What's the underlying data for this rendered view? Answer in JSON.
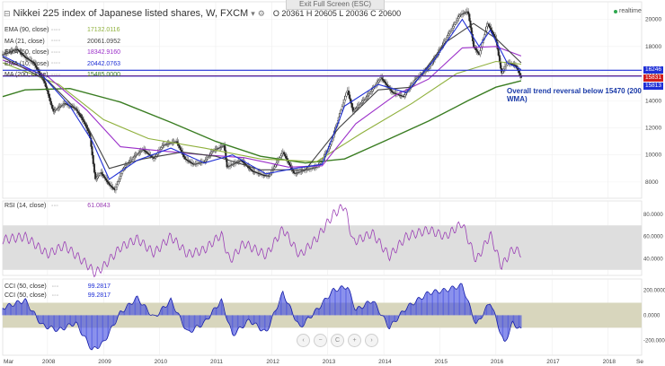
{
  "header": {
    "exit_fullscreen": "Exit Full Screen (ESC)",
    "title": "Nikkei 225 index of Japanese listed shares, W, FXCM",
    "ohlc": "O 20361 H 20605 L 20036 C 20600",
    "realtime": "realtime"
  },
  "indicators": [
    {
      "name": "EMA (90, close)",
      "value": "17132.0116",
      "color": "#8fb03c"
    },
    {
      "name": "MA (21, close)",
      "value": "20061.0952",
      "color": "#444444"
    },
    {
      "name": "EMA (50, close)",
      "value": "18342.9160",
      "color": "#9b2fc9"
    },
    {
      "name": "EMA (10, close)",
      "value": "20442.0763",
      "color": "#1f2fd6"
    },
    {
      "name": "MA (200, close)",
      "value": "15485.0000",
      "color": "#3a7d22"
    }
  ],
  "price_tags": [
    {
      "label": "16246",
      "color": "#1f2fd6"
    },
    {
      "label": "15831",
      "color": "#d01d1d"
    },
    {
      "label": "15813",
      "color": "#1f2fd6"
    }
  ],
  "annotation": "Overall trend reversal below 15470 (200 WMA)",
  "rsi_label": {
    "name": "RSI (14, close)",
    "value": "61.0843"
  },
  "cci_labels": [
    {
      "name": "CCI (50, close)",
      "value": "99.2817"
    },
    {
      "name": "CCI (50, close)",
      "value": "99.2817"
    }
  ],
  "nav_controls": [
    {
      "icon": "chevron-left-icon",
      "glyph": "‹"
    },
    {
      "icon": "minus-icon",
      "glyph": "−"
    },
    {
      "icon": "reset-icon",
      "glyph": "C"
    },
    {
      "icon": "plus-icon",
      "glyph": "+"
    },
    {
      "icon": "chevron-right-icon",
      "glyph": "›"
    }
  ],
  "chart_data": [
    {
      "type": "candlestick",
      "title": "Nikkei 225 index of Japanese listed shares, W, FXCM",
      "x_ticks": [
        "Mar",
        "2008",
        "2009",
        "2010",
        "2011",
        "2012",
        "2013",
        "2014",
        "2015",
        "2016",
        "2017",
        "2018",
        "Se"
      ],
      "x_range": [
        2007.2,
        2018.6
      ],
      "y_ticks": [
        "8000",
        "10000",
        "12000",
        "14000",
        "16000",
        "18000",
        "20000"
      ],
      "ylim": [
        6800,
        21300
      ],
      "horizontal_levels": [
        16246,
        15831,
        15813
      ],
      "price_path": [
        [
          2007.2,
          17400
        ],
        [
          2007.45,
          17800
        ],
        [
          2007.6,
          17200
        ],
        [
          2007.75,
          16800
        ],
        [
          2007.95,
          15300
        ],
        [
          2008.1,
          13200
        ],
        [
          2008.3,
          13800
        ],
        [
          2008.5,
          13400
        ],
        [
          2008.65,
          12400
        ],
        [
          2008.75,
          11500
        ],
        [
          2008.85,
          8200
        ],
        [
          2008.95,
          8700
        ],
        [
          2009.1,
          7800
        ],
        [
          2009.2,
          7400
        ],
        [
          2009.35,
          9000
        ],
        [
          2009.55,
          9900
        ],
        [
          2009.7,
          10400
        ],
        [
          2009.9,
          9700
        ],
        [
          2010.05,
          10700
        ],
        [
          2010.3,
          11000
        ],
        [
          2010.45,
          9700
        ],
        [
          2010.6,
          9300
        ],
        [
          2010.8,
          9500
        ],
        [
          2010.95,
          10300
        ],
        [
          2011.15,
          10700
        ],
        [
          2011.2,
          9100
        ],
        [
          2011.45,
          9600
        ],
        [
          2011.65,
          8800
        ],
        [
          2011.85,
          8500
        ],
        [
          2011.95,
          8450
        ],
        [
          2012.2,
          10200
        ],
        [
          2012.4,
          8600
        ],
        [
          2012.6,
          8900
        ],
        [
          2012.8,
          9100
        ],
        [
          2012.9,
          9600
        ],
        [
          2013.05,
          10800
        ],
        [
          2013.35,
          14800
        ],
        [
          2013.45,
          13200
        ],
        [
          2013.7,
          14300
        ],
        [
          2013.95,
          15700
        ],
        [
          2014.15,
          14600
        ],
        [
          2014.35,
          14300
        ],
        [
          2014.55,
          15500
        ],
        [
          2014.8,
          16400
        ],
        [
          2014.95,
          17400
        ],
        [
          2015.1,
          18500
        ],
        [
          2015.35,
          20300
        ],
        [
          2015.5,
          20600
        ],
        [
          2015.6,
          18000
        ],
        [
          2015.7,
          17400
        ],
        [
          2015.85,
          19700
        ],
        [
          2016.0,
          18500
        ],
        [
          2016.1,
          16000
        ],
        [
          2016.2,
          16800
        ],
        [
          2016.35,
          16600
        ],
        [
          2016.45,
          15700
        ]
      ],
      "series": [
        {
          "name": "EMA (10, close)",
          "color": "#1f2fd6",
          "points": [
            [
              2007.2,
              17300
            ],
            [
              2007.9,
              15900
            ],
            [
              2008.4,
              13600
            ],
            [
              2008.8,
              11000
            ],
            [
              2009.1,
              8200
            ],
            [
              2009.6,
              9600
            ],
            [
              2010.2,
              10500
            ],
            [
              2010.8,
              9400
            ],
            [
              2011.3,
              10000
            ],
            [
              2011.9,
              8600
            ],
            [
              2012.4,
              9000
            ],
            [
              2012.9,
              9300
            ],
            [
              2013.3,
              13600
            ],
            [
              2013.9,
              15200
            ],
            [
              2014.4,
              14600
            ],
            [
              2014.9,
              17000
            ],
            [
              2015.4,
              20000
            ],
            [
              2015.7,
              18000
            ],
            [
              2015.9,
              19200
            ],
            [
              2016.2,
              16800
            ],
            [
              2016.45,
              16300
            ]
          ]
        },
        {
          "name": "MA (21, close)",
          "color": "#444444",
          "points": [
            [
              2007.2,
              17200
            ],
            [
              2008.0,
              15500
            ],
            [
              2008.6,
              13000
            ],
            [
              2009.1,
              9000
            ],
            [
              2009.7,
              9700
            ],
            [
              2010.4,
              10200
            ],
            [
              2011.0,
              9900
            ],
            [
              2011.8,
              8900
            ],
            [
              2012.6,
              8900
            ],
            [
              2013.2,
              12000
            ],
            [
              2013.9,
              14800
            ],
            [
              2014.5,
              15000
            ],
            [
              2015.1,
              18300
            ],
            [
              2015.6,
              19700
            ],
            [
              2016.0,
              18600
            ],
            [
              2016.45,
              16800
            ]
          ]
        },
        {
          "name": "EMA (50, close)",
          "color": "#9b2fc9",
          "points": [
            [
              2007.2,
              17000
            ],
            [
              2008.0,
              15800
            ],
            [
              2008.7,
              13300
            ],
            [
              2009.3,
              10600
            ],
            [
              2010.0,
              10300
            ],
            [
              2010.8,
              10000
            ],
            [
              2011.5,
              9800
            ],
            [
              2012.3,
              9100
            ],
            [
              2012.9,
              9200
            ],
            [
              2013.5,
              12300
            ],
            [
              2014.2,
              14400
            ],
            [
              2014.8,
              15600
            ],
            [
              2015.4,
              17900
            ],
            [
              2016.0,
              18000
            ],
            [
              2016.45,
              17300
            ]
          ]
        },
        {
          "name": "EMA (90, close)",
          "color": "#8fb03c",
          "points": [
            [
              2007.2,
              16800
            ],
            [
              2008.2,
              15200
            ],
            [
              2009.0,
              12600
            ],
            [
              2009.8,
              11200
            ],
            [
              2010.8,
              10500
            ],
            [
              2011.8,
              9700
            ],
            [
              2012.8,
              9500
            ],
            [
              2013.6,
              11600
            ],
            [
              2014.5,
              13800
            ],
            [
              2015.3,
              16000
            ],
            [
              2016.0,
              16900
            ],
            [
              2016.45,
              16700
            ]
          ]
        },
        {
          "name": "MA (200, close)",
          "color": "#3a7d22",
          "points": [
            [
              2007.2,
              14300
            ],
            [
              2007.6,
              14800
            ],
            [
              2008.4,
              14900
            ],
            [
              2009.3,
              13900
            ],
            [
              2010.2,
              12400
            ],
            [
              2011.0,
              11000
            ],
            [
              2011.8,
              9900
            ],
            [
              2012.6,
              9400
            ],
            [
              2013.3,
              9700
            ],
            [
              2014.0,
              11000
            ],
            [
              2014.8,
              12500
            ],
            [
              2015.5,
              14000
            ],
            [
              2016.0,
              15000
            ],
            [
              2016.45,
              15470
            ]
          ]
        }
      ]
    },
    {
      "type": "line",
      "title": "RSI (14, close)",
      "y_ticks": [
        "40.0000",
        "60.0000",
        "80.0000"
      ],
      "ylim": [
        25,
        92
      ],
      "band": [
        30,
        70
      ],
      "series": [
        {
          "name": "RSI (14, close)",
          "color": "#9b3fb5",
          "points": [
            [
              2007.2,
              57
            ],
            [
              2007.6,
              60
            ],
            [
              2008.0,
              44
            ],
            [
              2008.3,
              52
            ],
            [
              2008.7,
              35
            ],
            [
              2008.85,
              27
            ],
            [
              2009.0,
              33
            ],
            [
              2009.3,
              50
            ],
            [
              2009.6,
              58
            ],
            [
              2009.9,
              45
            ],
            [
              2010.2,
              60
            ],
            [
              2010.5,
              44
            ],
            [
              2010.8,
              48
            ],
            [
              2011.1,
              62
            ],
            [
              2011.25,
              38
            ],
            [
              2011.5,
              54
            ],
            [
              2011.9,
              43
            ],
            [
              2012.2,
              67
            ],
            [
              2012.5,
              43
            ],
            [
              2012.8,
              58
            ],
            [
              2013.1,
              80
            ],
            [
              2013.3,
              88
            ],
            [
              2013.45,
              55
            ],
            [
              2013.8,
              63
            ],
            [
              2014.1,
              42
            ],
            [
              2014.4,
              60
            ],
            [
              2014.8,
              66
            ],
            [
              2015.1,
              60
            ],
            [
              2015.4,
              72
            ],
            [
              2015.65,
              38
            ],
            [
              2015.9,
              62
            ],
            [
              2016.1,
              33
            ],
            [
              2016.3,
              49
            ],
            [
              2016.45,
              45
            ]
          ]
        }
      ]
    },
    {
      "type": "bar",
      "title": "CCI (50, close)",
      "y_ticks": [
        "-200.0000",
        "0.0000",
        "200.0000"
      ],
      "ylim": [
        -320,
        290
      ],
      "band": [
        -100,
        100
      ],
      "series": [
        {
          "name": "CCI (50, close)",
          "color": "#1f2fd6",
          "points": [
            [
              2007.2,
              60
            ],
            [
              2007.6,
              120
            ],
            [
              2007.9,
              -80
            ],
            [
              2008.2,
              -120
            ],
            [
              2008.5,
              -60
            ],
            [
              2008.8,
              -280
            ],
            [
              2009.0,
              -220
            ],
            [
              2009.3,
              20
            ],
            [
              2009.6,
              140
            ],
            [
              2009.9,
              -20
            ],
            [
              2010.2,
              120
            ],
            [
              2010.5,
              -140
            ],
            [
              2010.8,
              -60
            ],
            [
              2011.1,
              120
            ],
            [
              2011.3,
              -160
            ],
            [
              2011.6,
              -40
            ],
            [
              2011.9,
              -140
            ],
            [
              2012.2,
              180
            ],
            [
              2012.5,
              -100
            ],
            [
              2012.8,
              40
            ],
            [
              2013.1,
              200
            ],
            [
              2013.35,
              230
            ],
            [
              2013.5,
              40
            ],
            [
              2013.8,
              120
            ],
            [
              2014.1,
              -100
            ],
            [
              2014.4,
              60
            ],
            [
              2014.8,
              180
            ],
            [
              2015.1,
              200
            ],
            [
              2015.4,
              240
            ],
            [
              2015.65,
              -80
            ],
            [
              2015.9,
              110
            ],
            [
              2016.15,
              -230
            ],
            [
              2016.3,
              -60
            ],
            [
              2016.45,
              -120
            ]
          ]
        }
      ]
    }
  ]
}
